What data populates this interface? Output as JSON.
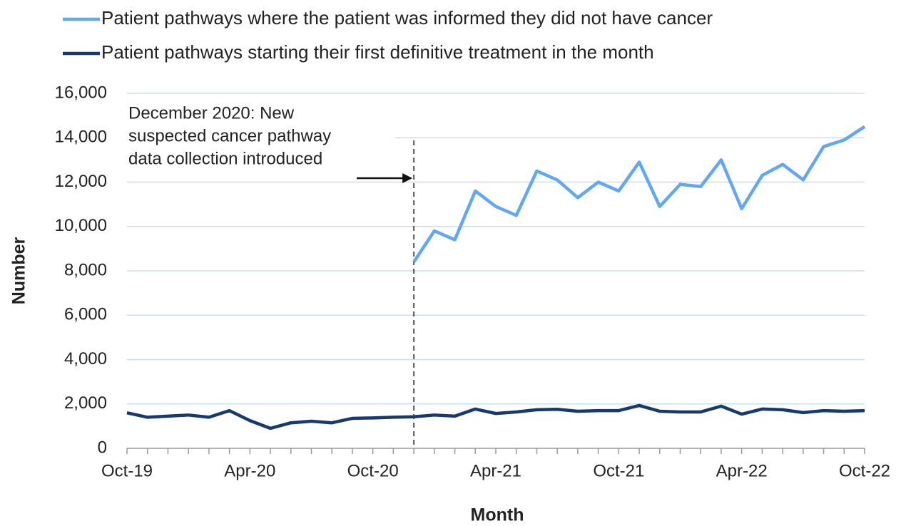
{
  "chart_data": {
    "type": "line",
    "x_label": "Month",
    "y_label": "Number",
    "annotation": [
      "December 2020: New",
      "suspected cancer pathway",
      "data collection introduced"
    ],
    "categories": [
      "Oct-19",
      null,
      null,
      null,
      null,
      null,
      "Apr-20",
      null,
      null,
      null,
      null,
      null,
      "Oct-20",
      null,
      null,
      null,
      null,
      null,
      "Apr-21",
      null,
      null,
      null,
      null,
      null,
      "Oct-21",
      null,
      null,
      null,
      null,
      null,
      "Apr-22",
      null,
      null,
      null,
      null,
      null,
      "Oct-22"
    ],
    "series": [
      {
        "name": "Patient pathways where the patient was informed they did not have cancer",
        "color": "#5fa8f7",
        "values": [
          null,
          null,
          null,
          null,
          null,
          null,
          null,
          null,
          null,
          null,
          null,
          null,
          null,
          null,
          8400,
          9800,
          9400,
          11600,
          10900,
          10500,
          12500,
          12100,
          11300,
          12000,
          11600,
          12900,
          10900,
          11900,
          11800,
          13000,
          10800,
          12300,
          12800,
          12100,
          13600,
          13900,
          14500
        ]
      },
      {
        "name": "Patient pathways starting their first definitive treatment in the month",
        "color": "#163a70",
        "values": [
          1600,
          1400,
          1450,
          1500,
          1400,
          1700,
          1250,
          900,
          1150,
          1220,
          1150,
          1350,
          1370,
          1400,
          1420,
          1500,
          1450,
          1770,
          1570,
          1640,
          1740,
          1760,
          1670,
          1700,
          1700,
          1930,
          1670,
          1640,
          1640,
          1900,
          1540,
          1770,
          1740,
          1610,
          1700,
          1670,
          1700
        ]
      }
    ],
    "ylim": [
      0,
      16000
    ],
    "yticks": [
      0,
      {
        "value": 2000,
        "label": "2,000"
      },
      {
        "value": 4000,
        "label": "4,000"
      },
      {
        "value": 6000,
        "label": "6,000"
      },
      {
        "value": 8000,
        "label": "8,000"
      },
      {
        "value": 10000,
        "label": "10,000"
      },
      {
        "value": 12000,
        "label": "12,000"
      },
      {
        "value": 14000,
        "label": "14,000"
      },
      {
        "value": 16000,
        "label": "16,000"
      }
    ],
    "grid": true,
    "legend": "top"
  }
}
